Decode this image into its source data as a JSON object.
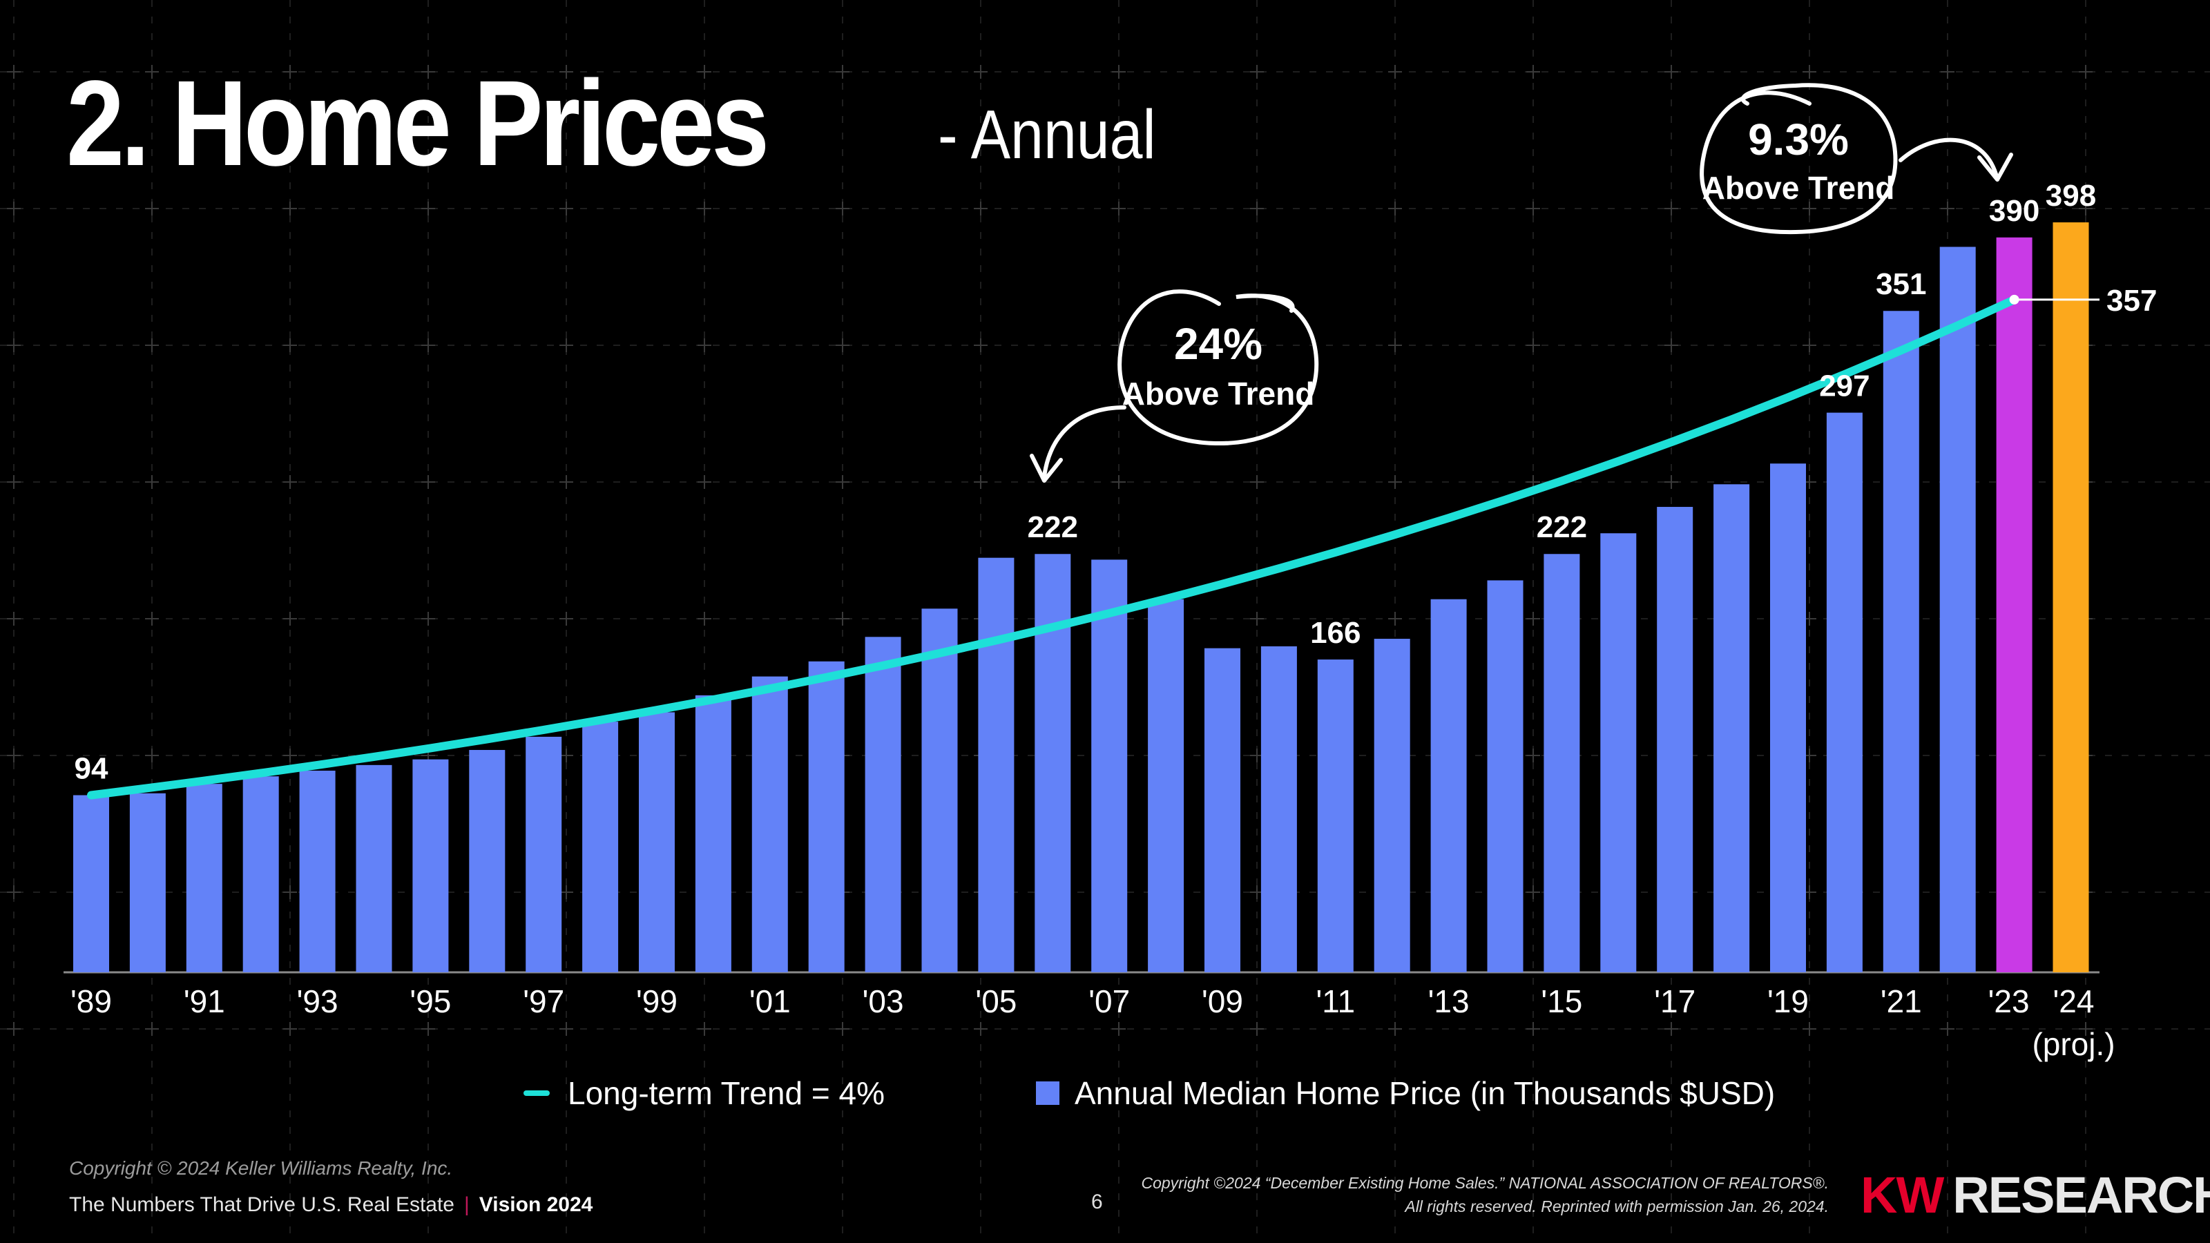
{
  "title": "2. Home Prices",
  "subtitle": "- Annual",
  "chart_data": {
    "type": "bar",
    "title": "2. Home Prices - Annual",
    "ylabel": "Annual Median Home Price (in Thousands $USD)",
    "ylim": [
      0,
      420
    ],
    "grid": true,
    "years": [
      "1989",
      "1990",
      "1991",
      "1992",
      "1993",
      "1994",
      "1995",
      "1996",
      "1997",
      "1998",
      "1999",
      "2000",
      "2001",
      "2002",
      "2003",
      "2004",
      "2005",
      "2006",
      "2007",
      "2008",
      "2009",
      "2010",
      "2011",
      "2012",
      "2013",
      "2014",
      "2015",
      "2016",
      "2017",
      "2018",
      "2019",
      "2020",
      "2021",
      "2022",
      "2023",
      "2024"
    ],
    "tick_labels": [
      "'89",
      "'91",
      "'93",
      "'95",
      "'97",
      "'99",
      "'01",
      "'03",
      "'05",
      "'07",
      "'09",
      "'11",
      "'13",
      "'15",
      "'17",
      "'19",
      "'21",
      "'23",
      "'24"
    ],
    "proj_label": "(proj.)",
    "series": [
      {
        "name": "Annual Median Home Price (in Thousands $USD)",
        "color": "#6382f8",
        "values": [
          94,
          95,
          100,
          104,
          107,
          110,
          113,
          118,
          125,
          133,
          138,
          147,
          157,
          165,
          178,
          193,
          220,
          222,
          219,
          198,
          172,
          173,
          166,
          177,
          198,
          208,
          222,
          233,
          247,
          259,
          270,
          297,
          351,
          385,
          390,
          398
        ]
      },
      {
        "name": "Long-term Trend = 4%",
        "type": "line",
        "color": "#1ee0d8",
        "rate": 0.04,
        "start_value": 94,
        "end_value": 357
      }
    ],
    "highlight_colors": {
      "2023": "#c93ae6",
      "2024": "#fca81c"
    },
    "data_labels": [
      {
        "year": "1989",
        "text": "94"
      },
      {
        "year": "2006",
        "text": "222"
      },
      {
        "year": "2011",
        "text": "166"
      },
      {
        "year": "2015",
        "text": "222"
      },
      {
        "year": "2020",
        "text": "297"
      },
      {
        "year": "2021",
        "text": "351"
      },
      {
        "year": "2023",
        "text": "390"
      },
      {
        "year": "2024",
        "text": "398"
      }
    ],
    "trend_end_label": "357",
    "annotations": [
      {
        "percent": "24%",
        "text": "Above Trend",
        "target_year": "2006"
      },
      {
        "percent": "9.3%",
        "text": "Above Trend",
        "target_year": "2023"
      }
    ]
  },
  "legend": {
    "trend_label": "Long-term Trend = 4%",
    "bars_label": "Annual Median Home Price (in Thousands $USD)"
  },
  "footer": {
    "copyright": "Copyright © 2024 Keller Williams Realty, Inc.",
    "tagline": "The Numbers That Drive U.S. Real Estate",
    "separator": "|",
    "vision": "Vision 2024",
    "page": "6",
    "source_line1": "Copyright ©2024 “December Existing Home Sales.” NATIONAL ASSOCIATION OF REALTORS®.",
    "source_line2": "All rights reserved. Reprinted with permission Jan. 26, 2024.",
    "logo_kw": "KW",
    "logo_research": "RESEARCH"
  }
}
